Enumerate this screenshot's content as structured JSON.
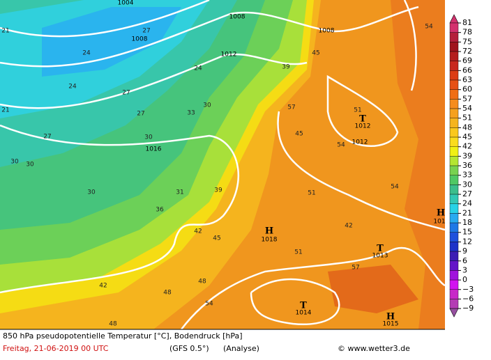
{
  "map": {
    "labels": [
      "1004",
      "1008",
      "1008",
      "1008",
      "1012",
      "1012",
      "1016",
      "H",
      "1018",
      "T",
      "1012",
      "T",
      "1013",
      "T",
      "1014",
      "H",
      "1015",
      "H",
      "101",
      "21",
      "27",
      "24",
      "24",
      "24",
      "27",
      "27",
      "21",
      "27",
      "30",
      "33",
      "30",
      "30",
      "30",
      "30",
      "36",
      "31",
      "39",
      "42",
      "42",
      "45",
      "45",
      "48",
      "48",
      "51",
      "51",
      "51",
      "54",
      "54",
      "54",
      "57",
      "57",
      "54",
      "48",
      "39",
      "42",
      "45"
    ]
  },
  "colorbar": [
    {
      "label": "81",
      "color": "#d3326e"
    },
    {
      "label": "78",
      "color": "#b4203c"
    },
    {
      "label": "75",
      "color": "#a0141e"
    },
    {
      "label": "72",
      "color": "#b41e1e"
    },
    {
      "label": "69",
      "color": "#c8281e"
    },
    {
      "label": "66",
      "color": "#dc3c14"
    },
    {
      "label": "63",
      "color": "#e65014"
    },
    {
      "label": "60",
      "color": "#f06e14"
    },
    {
      "label": "57",
      "color": "#f58c1e"
    },
    {
      "label": "54",
      "color": "#f5a01e"
    },
    {
      "label": "51",
      "color": "#f5b41e"
    },
    {
      "label": "48",
      "color": "#fac81e"
    },
    {
      "label": "45",
      "color": "#fadc1e"
    },
    {
      "label": "42",
      "color": "#f0f014"
    },
    {
      "label": "39",
      "color": "#b4e632"
    },
    {
      "label": "36",
      "color": "#78d250"
    },
    {
      "label": "33",
      "color": "#50c864"
    },
    {
      "label": "30",
      "color": "#3cbe8c"
    },
    {
      "label": "27",
      "color": "#32c8b4"
    },
    {
      "label": "24",
      "color": "#28d2e6"
    },
    {
      "label": "21",
      "color": "#28aaf0"
    },
    {
      "label": "18",
      "color": "#1e78e6"
    },
    {
      "label": "15",
      "color": "#1e50dc"
    },
    {
      "label": "12",
      "color": "#1e32c8"
    },
    {
      "label": "9",
      "color": "#3c1eb4"
    },
    {
      "label": "6",
      "color": "#6414c8"
    },
    {
      "label": "3",
      "color": "#a014dc"
    },
    {
      "label": "0",
      "color": "#d214f0"
    },
    {
      "label": "−3",
      "color": "#c828c8"
    },
    {
      "label": "−6",
      "color": "#b43cb4"
    },
    {
      "label": "−9",
      "color": "#9650a0"
    }
  ],
  "footer": {
    "title": "850 hPa pseudopotentielle Temperatur [°C], Bodendruck [hPa]",
    "date": "Freitag, 21-06-2019  00 UTC",
    "model": "(GFS 0.5°)",
    "run": "(Analyse)",
    "credit": "© www.wetter3.de"
  }
}
